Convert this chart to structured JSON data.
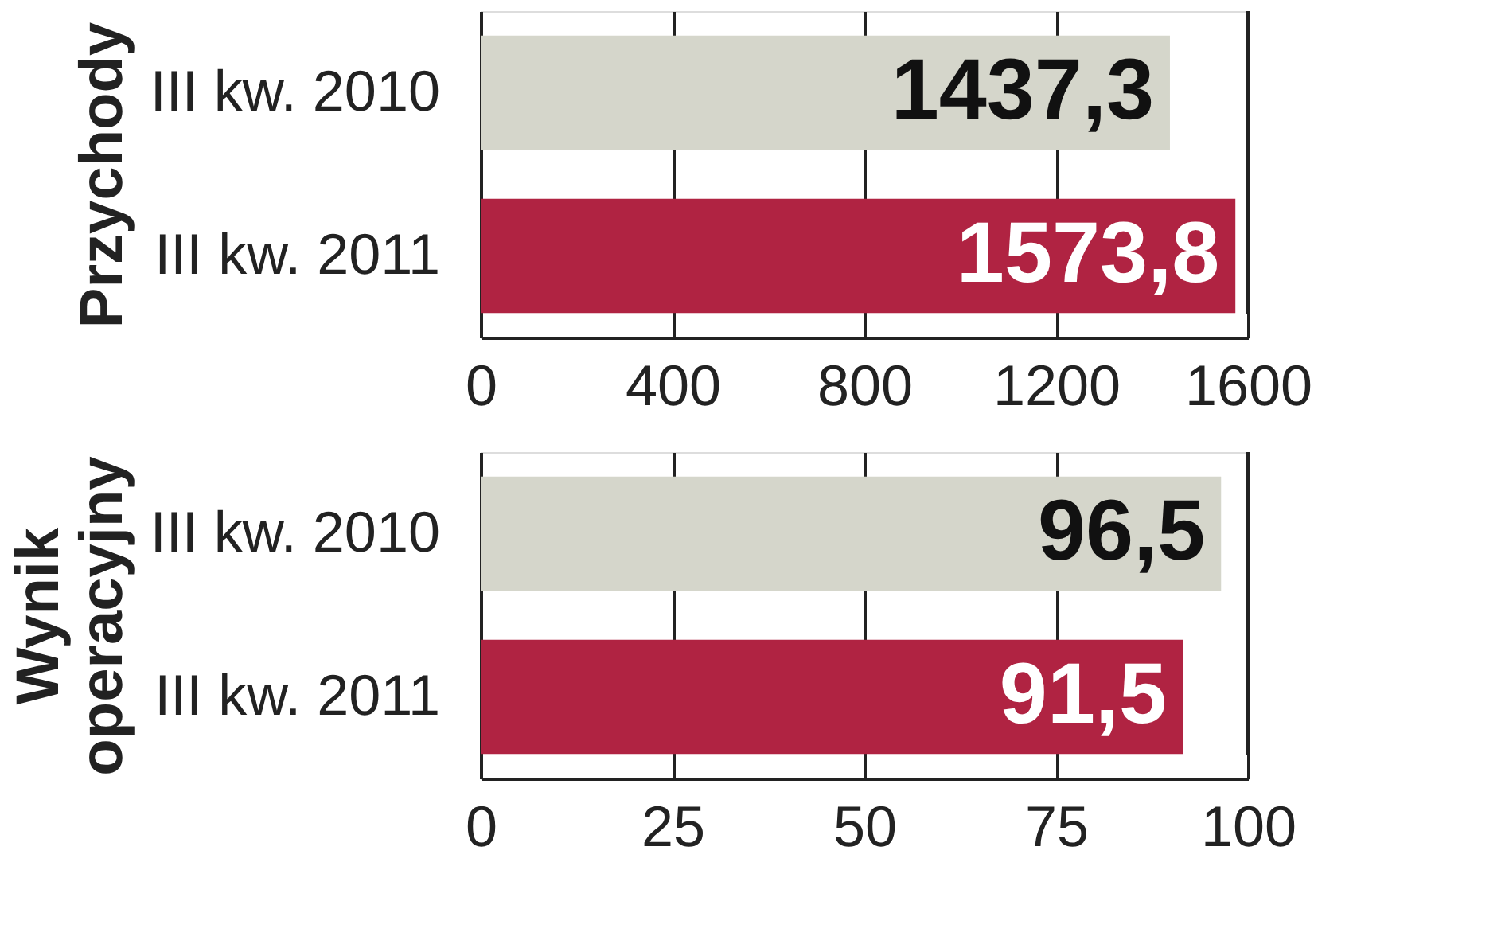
{
  "chart_data": [
    {
      "type": "bar",
      "orientation": "horizontal",
      "ylabel": "Przychody",
      "categories": [
        "III kw. 2010",
        "III kw. 2011"
      ],
      "values": [
        1437.3,
        1573.8
      ],
      "value_labels": [
        "1437,3",
        "1573,8"
      ],
      "colors": [
        "#d5d6cb",
        "#b02342"
      ],
      "xlim": [
        0,
        1600
      ],
      "xticks": [
        0,
        400,
        800,
        1200,
        1600
      ],
      "grid": "x"
    },
    {
      "type": "bar",
      "orientation": "horizontal",
      "ylabel": "Wynik operacyjny",
      "categories": [
        "III kw. 2010",
        "III kw. 2011"
      ],
      "values": [
        96.5,
        91.5
      ],
      "value_labels": [
        "96,5",
        "91,5"
      ],
      "colors": [
        "#d5d6cb",
        "#b02342"
      ],
      "xlim": [
        0,
        100
      ],
      "xticks": [
        0,
        25,
        50,
        75,
        100
      ],
      "grid": "x"
    }
  ]
}
